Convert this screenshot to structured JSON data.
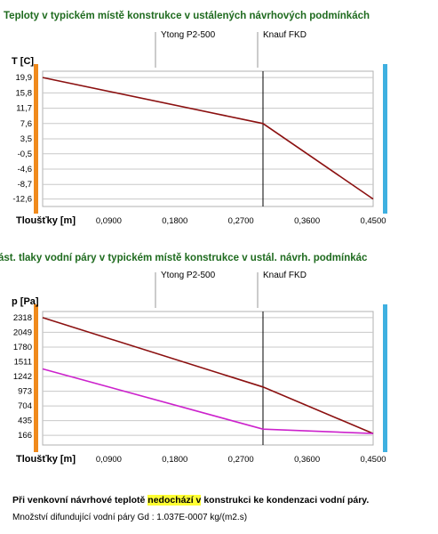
{
  "chart_data": [
    {
      "type": "line",
      "title": "Teploty v typickém místě konstrukce v ustálených návrhových podmínkách",
      "ylabel": "T [C]",
      "xlabel": "Tloušťky [m]",
      "x_ticks": [
        "0,0900",
        "0,1800",
        "0,2700",
        "0,3600",
        "0,4500"
      ],
      "y_ticks": [
        "19,9",
        "15,8",
        "11,7",
        "7,6",
        "3,5",
        "-0,5",
        "-4,6",
        "-8,7",
        "-12,6"
      ],
      "xlim": [
        0,
        0.45
      ],
      "ylim": [
        -14.6,
        21.6
      ],
      "layers": [
        {
          "name": "Ytong P2-500",
          "from": 0,
          "to": 0.3
        },
        {
          "name": "Knauf FKD",
          "from": 0.3,
          "to": 0.45
        }
      ],
      "interface_x": 0.3,
      "series": [
        {
          "color": "#8b1010",
          "x": [
            0,
            0.3,
            0.45
          ],
          "y": [
            19.9,
            7.6,
            -12.6
          ]
        }
      ]
    },
    {
      "type": "line",
      "title": "ást. tlaky vodní páry v typickém místě konstrukce v ustál. návrh. podmínkác",
      "ylabel": "p [Pa]",
      "xlabel": "Tloušťky [m]",
      "x_ticks": [
        "0,0900",
        "0,1800",
        "0,2700",
        "0,3600",
        "0,4500"
      ],
      "y_ticks": [
        "2318",
        "2049",
        "1780",
        "1511",
        "1242",
        "973",
        "704",
        "435",
        "166"
      ],
      "xlim": [
        0,
        0.45
      ],
      "ylim": [
        -10,
        2430
      ],
      "layers": [
        {
          "name": "Ytong P2-500",
          "from": 0,
          "to": 0.3
        },
        {
          "name": "Knauf FKD",
          "from": 0.3,
          "to": 0.45
        }
      ],
      "interface_x": 0.3,
      "series": [
        {
          "color": "#8b1010",
          "x": [
            0,
            0.3,
            0.45
          ],
          "y": [
            2318,
            1050,
            200
          ]
        },
        {
          "color": "#cc22cc",
          "x": [
            0,
            0.3,
            0.45
          ],
          "y": [
            1380,
            280,
            200
          ]
        }
      ]
    }
  ],
  "footer": {
    "condensation_pre": "Při venkovní návrhové teplotě ",
    "condensation_highlight": "nedochází v",
    "condensation_post": " konstrukci ke kondenzaci vodní páry.",
    "diffusion": "Množství difundující vodní páry  Gd :  1.037E-0007 kg/(m2.s)"
  },
  "colors": {
    "title": "#1f6b1f",
    "inner_side": "#f08a1c",
    "outer_side": "#3fb0e0",
    "highlight": "#ffff33"
  }
}
